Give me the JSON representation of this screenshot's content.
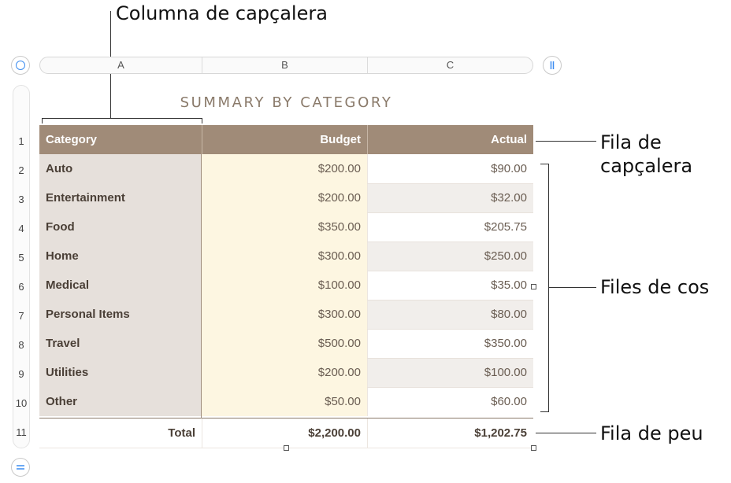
{
  "callouts": {
    "header_column": "Columna de capçalera",
    "header_row_line1": "Fila de",
    "header_row_line2": "capçalera",
    "body_rows": "Files de cos",
    "footer_row": "Fila de peu"
  },
  "column_letters": [
    "A",
    "B",
    "C"
  ],
  "row_numbers": [
    "1",
    "2",
    "3",
    "4",
    "5",
    "6",
    "7",
    "8",
    "9",
    "10",
    "11"
  ],
  "table": {
    "title": "SUMMARY BY CATEGORY",
    "headers": {
      "category": "Category",
      "budget": "Budget",
      "actual": "Actual"
    },
    "rows": [
      {
        "category": "Auto",
        "budget": "$200.00",
        "actual": "$90.00"
      },
      {
        "category": "Entertainment",
        "budget": "$200.00",
        "actual": "$32.00"
      },
      {
        "category": "Food",
        "budget": "$350.00",
        "actual": "$205.75"
      },
      {
        "category": "Home",
        "budget": "$300.00",
        "actual": "$250.00"
      },
      {
        "category": "Medical",
        "budget": "$100.00",
        "actual": "$35.00"
      },
      {
        "category": "Personal Items",
        "budget": "$300.00",
        "actual": "$80.00"
      },
      {
        "category": "Travel",
        "budget": "$500.00",
        "actual": "$350.00"
      },
      {
        "category": "Utilities",
        "budget": "$200.00",
        "actual": "$100.00"
      },
      {
        "category": "Other",
        "budget": "$50.00",
        "actual": "$60.00"
      }
    ],
    "footer": {
      "label": "Total",
      "budget": "$2,200.00",
      "actual": "$1,202.75"
    }
  },
  "colors": {
    "header_bg": "#a08b78",
    "category_bg": "#e6e0db",
    "budget_bg": "#fdf6e1",
    "accent_blue": "#3b8cf0"
  }
}
